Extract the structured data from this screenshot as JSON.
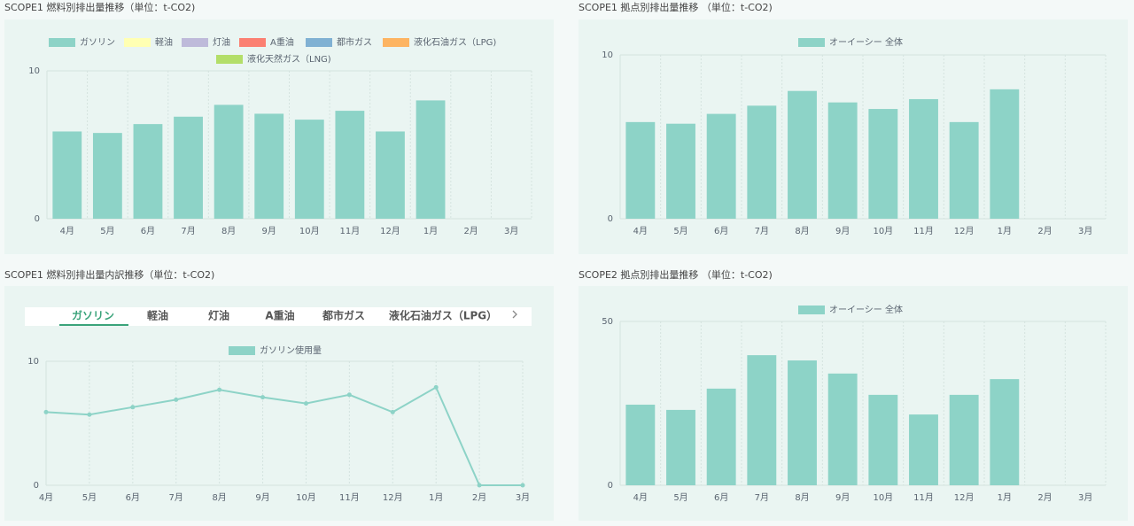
{
  "chart_data": [
    {
      "type": "bar",
      "title": "SCOPE1 燃料別排出量推移（単位：t-CO2)",
      "categories": [
        "4月",
        "5月",
        "6月",
        "7月",
        "8月",
        "9月",
        "10月",
        "11月",
        "12月",
        "1月",
        "2月",
        "3月"
      ],
      "series": [
        {
          "name": "ガソリン",
          "color": "#8dd3c7",
          "values": [
            5.9,
            5.8,
            6.4,
            6.9,
            7.7,
            7.1,
            6.7,
            7.3,
            5.9,
            8.0,
            null,
            null
          ]
        },
        {
          "name": "軽油",
          "color": "#ffffb3",
          "values": [
            null,
            null,
            null,
            null,
            null,
            null,
            null,
            null,
            null,
            null,
            null,
            null
          ]
        },
        {
          "name": "灯油",
          "color": "#bebada",
          "values": [
            null,
            null,
            null,
            null,
            null,
            null,
            null,
            null,
            null,
            null,
            null,
            null
          ]
        },
        {
          "name": "A重油",
          "color": "#fb8072",
          "values": [
            null,
            null,
            null,
            null,
            null,
            null,
            null,
            null,
            null,
            null,
            null,
            null
          ]
        },
        {
          "name": "都市ガス",
          "color": "#80b1d3",
          "values": [
            null,
            null,
            null,
            null,
            null,
            null,
            null,
            null,
            null,
            null,
            null,
            null
          ]
        },
        {
          "name": "液化石油ガス（LPG)",
          "color": "#fdb462",
          "values": [
            null,
            null,
            null,
            null,
            null,
            null,
            null,
            null,
            null,
            null,
            null,
            null
          ]
        },
        {
          "name": "液化天然ガス（LNG)",
          "color": "#b3de69",
          "values": [
            null,
            null,
            null,
            null,
            null,
            null,
            null,
            null,
            null,
            null,
            null,
            null
          ]
        }
      ],
      "ylim": [
        0,
        10
      ],
      "yticks": [
        0,
        10
      ],
      "grid": true
    },
    {
      "type": "bar",
      "title": "SCOPE1 拠点別排出量推移 （単位：t-CO2)",
      "categories": [
        "4月",
        "5月",
        "6月",
        "7月",
        "8月",
        "9月",
        "10月",
        "11月",
        "12月",
        "1月",
        "2月",
        "3月"
      ],
      "series": [
        {
          "name": "オーイーシー 全体",
          "color": "#8dd3c7",
          "values": [
            5.9,
            5.8,
            6.4,
            6.9,
            7.8,
            7.1,
            6.7,
            7.3,
            5.9,
            7.9,
            null,
            null
          ]
        }
      ],
      "ylim": [
        0,
        10
      ],
      "yticks": [
        0,
        10
      ],
      "grid": true
    },
    {
      "type": "line",
      "title": "SCOPE1 燃料別排出量内訳推移（単位：t-CO2)",
      "tabs": [
        "ガソリン",
        "軽油",
        "灯油",
        "A重油",
        "都市ガス",
        "液化石油ガス（LPG）"
      ],
      "active_tab": 0,
      "categories": [
        "4月",
        "5月",
        "6月",
        "7月",
        "8月",
        "9月",
        "10月",
        "11月",
        "12月",
        "1月",
        "2月",
        "3月"
      ],
      "series": [
        {
          "name": "ガソリン使用量",
          "color": "#8dd3c7",
          "values": [
            5.9,
            5.7,
            6.3,
            6.9,
            7.7,
            7.1,
            6.6,
            7.3,
            5.9,
            7.9,
            0,
            0
          ]
        }
      ],
      "ylim": [
        0,
        10
      ],
      "yticks": [
        0,
        10
      ],
      "grid": true
    },
    {
      "type": "bar",
      "title": "SCOPE2 拠点別排出量推移 （単位：t-CO2)",
      "categories": [
        "4月",
        "5月",
        "6月",
        "7月",
        "8月",
        "9月",
        "10月",
        "11月",
        "12月",
        "1月",
        "2月",
        "3月"
      ],
      "series": [
        {
          "name": "オーイーシー 全体",
          "color": "#8dd3c7",
          "values": [
            24.6,
            23.0,
            29.5,
            39.7,
            38.1,
            34.1,
            27.6,
            21.6,
            27.6,
            32.4,
            null,
            null
          ]
        }
      ],
      "ylim": [
        0,
        50
      ],
      "yticks": [
        0,
        50
      ],
      "grid": true
    }
  ]
}
